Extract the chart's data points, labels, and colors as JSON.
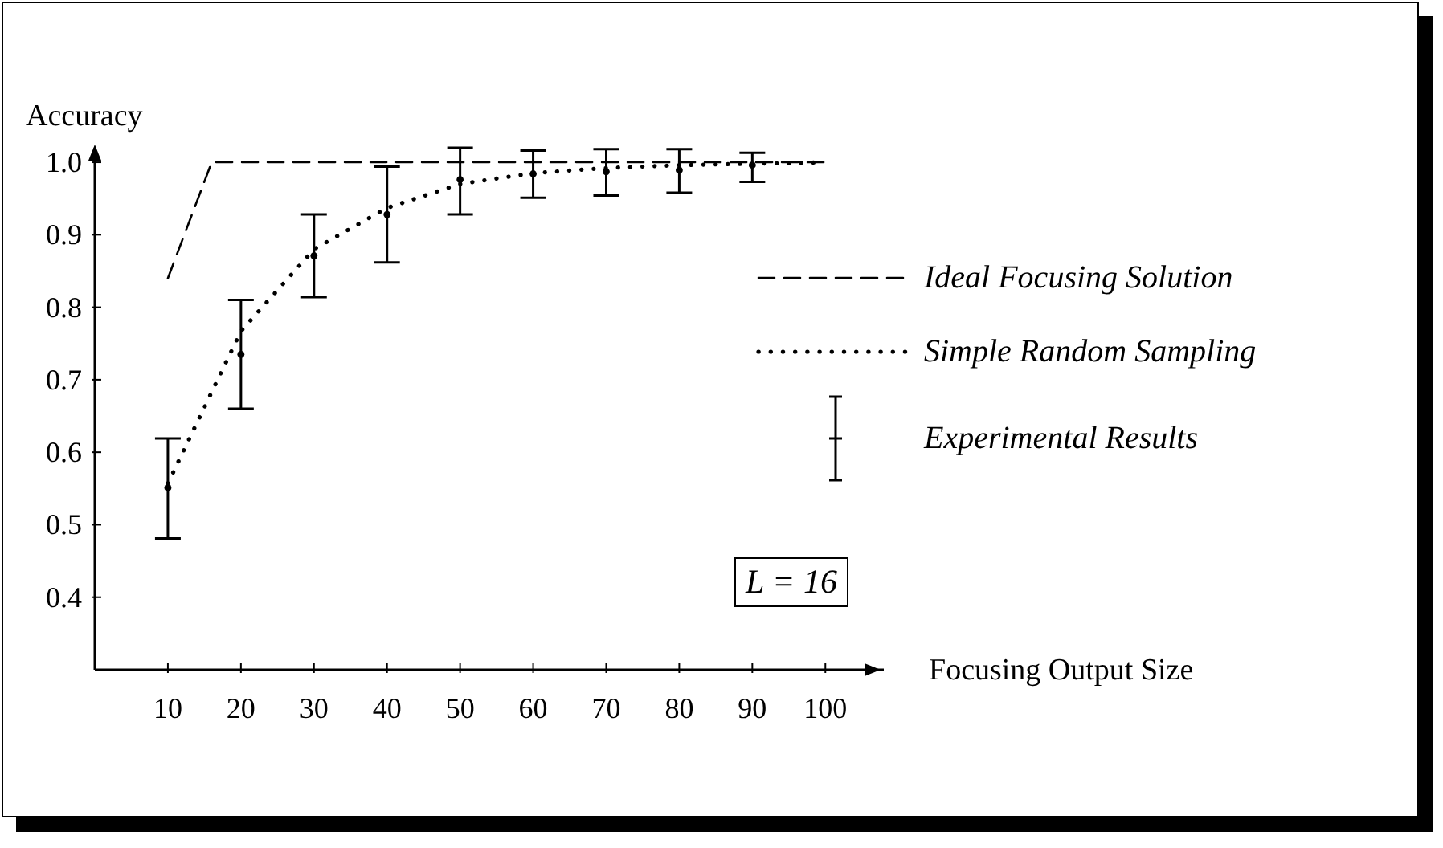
{
  "chart_data": {
    "type": "line",
    "xlabel": "Focusing Output Size",
    "ylabel": "Accuracy",
    "xlim": [
      0,
      108
    ],
    "ylim": [
      0.3,
      1.02
    ],
    "xticks": [
      10,
      20,
      30,
      40,
      50,
      60,
      70,
      80,
      90,
      100
    ],
    "yticks": [
      {
        "value": 0.4,
        "label": "0.4"
      },
      {
        "value": 0.5,
        "label": "0.5"
      },
      {
        "value": 0.6,
        "label": "0.6"
      },
      {
        "value": 0.7,
        "label": "0.7"
      },
      {
        "value": 0.8,
        "label": "0.8"
      },
      {
        "value": 0.9,
        "label": "0.9"
      },
      {
        "value": 1.0,
        "label": "1.0"
      }
    ],
    "grid": false,
    "legend": "right",
    "annotations": [
      "L = 16"
    ],
    "series": [
      {
        "name": "Ideal Focusing Solution",
        "line_style": "dashed",
        "color": "#000000",
        "x": [
          10,
          16,
          100
        ],
        "values": [
          0.84,
          1.0,
          1.0
        ]
      },
      {
        "name": "Simple Random Sampling",
        "line_style": "dotted",
        "color": "#000000",
        "x": [
          10,
          20,
          30,
          40,
          50,
          60,
          70,
          80,
          90,
          100
        ],
        "values": [
          0.557,
          0.767,
          0.88,
          0.937,
          0.97,
          0.985,
          0.992,
          0.996,
          0.998,
          1.0
        ]
      },
      {
        "name": "Experimental Results",
        "type": "scatter",
        "color": "#000000",
        "x": [
          10,
          20,
          30,
          40,
          50,
          60,
          70,
          80,
          90
        ],
        "values": [
          0.551,
          0.735,
          0.871,
          0.928,
          0.976,
          0.984,
          0.987,
          0.989,
          0.996
        ],
        "errors": [
          [
            0.481,
            0.619
          ],
          [
            0.66,
            0.81
          ],
          [
            0.814,
            0.928
          ],
          [
            0.862,
            0.994
          ],
          [
            0.928,
            1.02
          ],
          [
            0.951,
            1.016
          ],
          [
            0.954,
            1.018
          ],
          [
            0.958,
            1.018
          ],
          [
            0.973,
            1.013
          ]
        ]
      }
    ]
  }
}
